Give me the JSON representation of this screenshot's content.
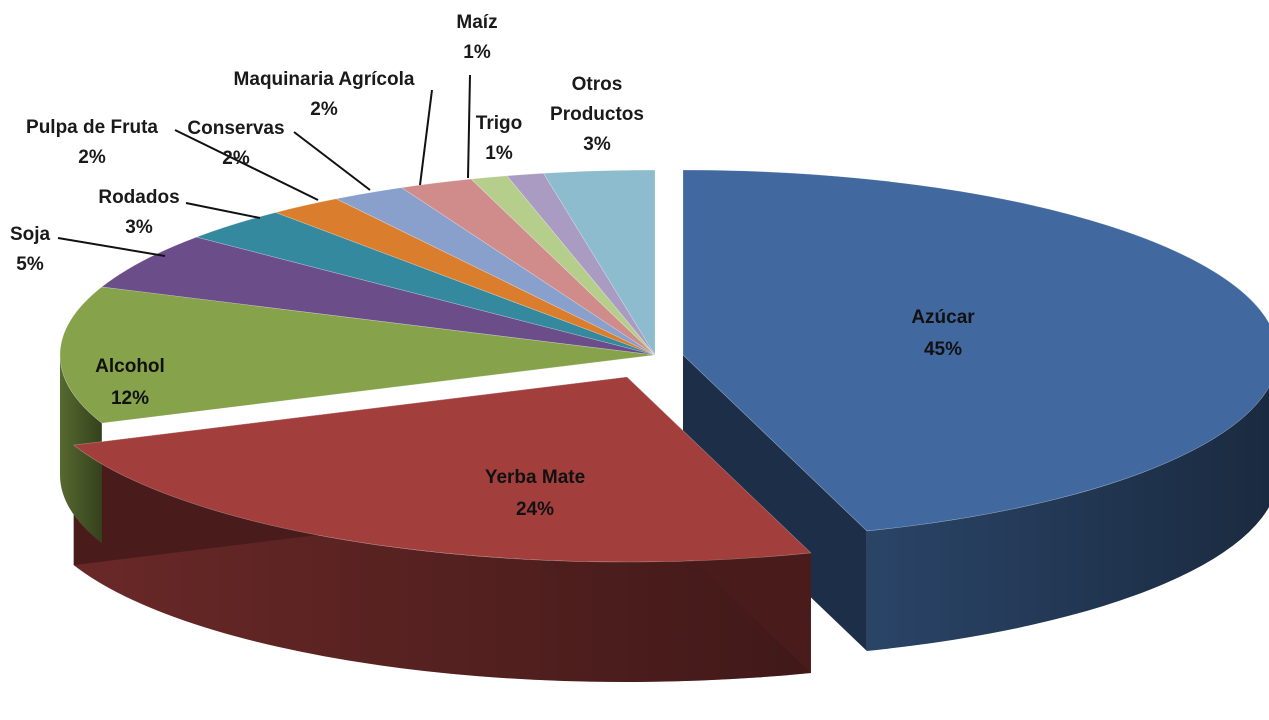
{
  "chart_data": {
    "type": "pie",
    "three_d": true,
    "exploded_slices": [
      "Azúcar",
      "Yerba Mate"
    ],
    "legend": "none",
    "slices": [
      {
        "name": "Azúcar",
        "value": 45,
        "label": "45%",
        "color": "#4169A0"
      },
      {
        "name": "Yerba Mate",
        "value": 24,
        "label": "24%",
        "color": "#A23F3D"
      },
      {
        "name": "Alcohol",
        "value": 12,
        "label": "12%",
        "color": "#86A24A"
      },
      {
        "name": "Soja",
        "value": 5,
        "label": "5%",
        "color": "#6B4E89"
      },
      {
        "name": "Rodados",
        "value": 3,
        "label": "3%",
        "color": "#34899E"
      },
      {
        "name": "Pulpa de Fruta",
        "value": 2,
        "label": "2%",
        "color": "#DA7D2C"
      },
      {
        "name": "Conservas",
        "value": 2,
        "label": "2%",
        "color": "#8AA0CC"
      },
      {
        "name": "Maquinaria Agrícola",
        "value": 2,
        "label": "2%",
        "color": "#D08C8B"
      },
      {
        "name": "Maíz",
        "value": 1,
        "label": "1%",
        "color": "#B5CE8C"
      },
      {
        "name": "Trigo",
        "value": 1,
        "label": "1%",
        "color": "#A99BC2"
      },
      {
        "name": "Otros Productos",
        "value": 3,
        "label": "3%",
        "color": "#8DBCCE"
      }
    ]
  }
}
